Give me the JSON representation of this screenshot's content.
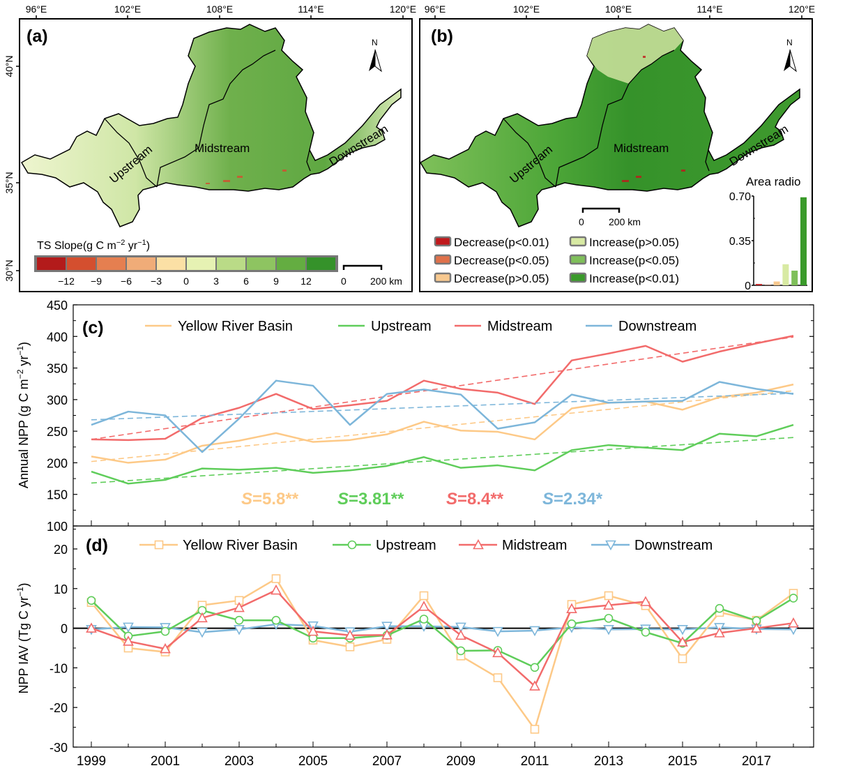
{
  "maps": {
    "lon_ticks": [
      "96°E",
      "102°E",
      "108°E",
      "114°E",
      "120°E"
    ],
    "lat_ticks": [
      "40°N",
      "35°N",
      "30°N"
    ],
    "north_label": "N",
    "region_labels": {
      "upstream": "Upstream",
      "midstream": "Midstream",
      "downstream": "Downstream"
    },
    "panel_a": {
      "label": "(a)",
      "legend_title": "TS Slope(g C m",
      "legend_title_sup1": "−2",
      "legend_title_mid": " yr",
      "legend_title_sup2": "−1",
      "legend_title_end": ")",
      "colorbar_colors": [
        "#b31b1b",
        "#d44f2f",
        "#e57f50",
        "#f0ac78",
        "#fbe0a5",
        "#e6f2b3",
        "#badb87",
        "#8ec461",
        "#64ad41",
        "#35922a"
      ],
      "colorbar_ticks": [
        "−12",
        "−9",
        "−6",
        "−3",
        "0",
        "3",
        "6",
        "9",
        "12"
      ],
      "scale_zero": "0",
      "scale_label": "200 km"
    },
    "panel_b": {
      "label": "(b)",
      "scale_zero": "0",
      "scale_label": "200 km",
      "legend": [
        {
          "label": "Decrease(p<0.01)",
          "color": "#c0191c"
        },
        {
          "label": "Decrease(p<0.05)",
          "color": "#e0714a"
        },
        {
          "label": "Decrease(p>0.05)",
          "color": "#f8c98f"
        },
        {
          "label": "Increase(p>0.05)",
          "color": "#d8eaa3"
        },
        {
          "label": "Increase(p<0.05)",
          "color": "#7fbf5a"
        },
        {
          "label": "Increase(p<0.01)",
          "color": "#3a9a2a"
        }
      ]
    }
  },
  "chart_data": [
    {
      "type": "bar",
      "title": "Area radio",
      "categories": [
        "Decrease(p<0.01)",
        "Decrease(p<0.05)",
        "Decrease(p>0.05)",
        "Increase(p>0.05)",
        "Increase(p<0.05)",
        "Increase(p<0.01)"
      ],
      "values": [
        0.01,
        0.002,
        0.03,
        0.165,
        0.115,
        0.69
      ],
      "colors": [
        "#c0191c",
        "#e0714a",
        "#f8c98f",
        "#d8eaa3",
        "#7fbf5a",
        "#3a9a2a"
      ],
      "ylim": [
        0,
        0.7
      ],
      "yticks": [
        "0",
        "0.35",
        "0.70"
      ],
      "ytick_values": [
        0,
        0.35,
        0.7
      ]
    },
    {
      "type": "line",
      "panel_label": "(c)",
      "ylabel": "Annual NPP (g C m",
      "ylabel_sup1": "−2",
      "ylabel_mid": " yr",
      "ylabel_sup2": "−1",
      "ylabel_end": ")",
      "ylim": [
        100,
        450
      ],
      "yticks": [
        100,
        150,
        200,
        250,
        300,
        350,
        400,
        450
      ],
      "x": [
        1999,
        2000,
        2001,
        2002,
        2003,
        2004,
        2005,
        2006,
        2007,
        2008,
        2009,
        2010,
        2011,
        2012,
        2013,
        2014,
        2015,
        2016,
        2017,
        2018
      ],
      "legend_position": "top",
      "series": [
        {
          "name": "Yellow River Basin",
          "color": "#fdc987",
          "values": [
            210,
            200,
            205,
            227,
            235,
            247,
            233,
            236,
            245,
            265,
            251,
            249,
            237,
            286,
            295,
            297,
            284,
            304,
            311,
            324
          ],
          "trend": [
            202,
            314
          ],
          "slope_label": "=5.8**"
        },
        {
          "name": "Upstream",
          "color": "#5fcd5a",
          "values": [
            186,
            167,
            173,
            191,
            189,
            192,
            184,
            188,
            195,
            209,
            192,
            196,
            188,
            220,
            228,
            224,
            220,
            246,
            242,
            260
          ],
          "trend": [
            168,
            240
          ],
          "slope_label": "=3.81**"
        },
        {
          "name": "Midstream",
          "color": "#f26b6b",
          "values": [
            237,
            236,
            238,
            271,
            287,
            309,
            285,
            291,
            298,
            330,
            317,
            311,
            293,
            362,
            373,
            385,
            360,
            376,
            389,
            401
          ],
          "trend": [
            237,
            399
          ],
          "slope_label": "=8.4**"
        },
        {
          "name": "Downstream",
          "color": "#7db6da",
          "values": [
            260,
            281,
            275,
            217,
            270,
            330,
            322,
            260,
            309,
            316,
            308,
            254,
            264,
            308,
            295,
            297,
            298,
            328,
            317,
            309
          ],
          "trend": [
            268,
            310
          ],
          "slope_label": "=2.34*"
        }
      ],
      "slope_prefix": "S"
    },
    {
      "type": "line",
      "panel_label": "(d)",
      "ylabel": "NPP IAV (Tg C yr",
      "ylabel_sup": "−1",
      "ylabel_end": ")",
      "ylim": [
        -30,
        25
      ],
      "yticks": [
        -30,
        -20,
        -10,
        0,
        10,
        20
      ],
      "x": [
        1999,
        2000,
        2001,
        2002,
        2003,
        2004,
        2005,
        2006,
        2007,
        2008,
        2009,
        2010,
        2011,
        2012,
        2013,
        2014,
        2015,
        2016,
        2017,
        2018
      ],
      "xtick_labels": [
        "1999",
        "2001",
        "2003",
        "2005",
        "2007",
        "2009",
        "2011",
        "2013",
        "2015",
        "2017"
      ],
      "legend_position": "top",
      "series": [
        {
          "name": "Yellow River Basin",
          "color": "#fdc987",
          "marker": "square",
          "values": [
            6.5,
            -5,
            -6,
            5.8,
            7,
            12.5,
            -3,
            -4.7,
            -2.8,
            8.2,
            -7,
            -12.5,
            -25.5,
            6,
            8.2,
            5.7,
            -7.7,
            4,
            2,
            8.8
          ]
        },
        {
          "name": "Upstream",
          "color": "#5fcd5a",
          "marker": "circle",
          "values": [
            7,
            -2,
            -0.8,
            4.5,
            2,
            2,
            -2.5,
            -2.5,
            -1.8,
            2.3,
            -5.7,
            -5.6,
            -9.9,
            1.1,
            2.5,
            -1,
            -3.8,
            5,
            1.9,
            7.6
          ]
        },
        {
          "name": "Midstream",
          "color": "#f26b6b",
          "marker": "triangle-up",
          "values": [
            0,
            -3.3,
            -5.2,
            2.6,
            5.2,
            9.6,
            -0.8,
            -1.8,
            -1.7,
            5.5,
            -1.8,
            -6.2,
            -14.6,
            4.9,
            5.8,
            6.7,
            -3.5,
            -1.2,
            0,
            1.3
          ]
        },
        {
          "name": "Downstream",
          "color": "#7db6da",
          "marker": "triangle-down",
          "values": [
            -0.3,
            0.3,
            0.2,
            -1,
            -0.3,
            1,
            0.6,
            -0.9,
            0.5,
            0.5,
            0.3,
            -0.8,
            -0.6,
            0.2,
            -0.3,
            -0.2,
            -0.3,
            0.2,
            -0.2,
            -0.3
          ]
        }
      ]
    }
  ]
}
